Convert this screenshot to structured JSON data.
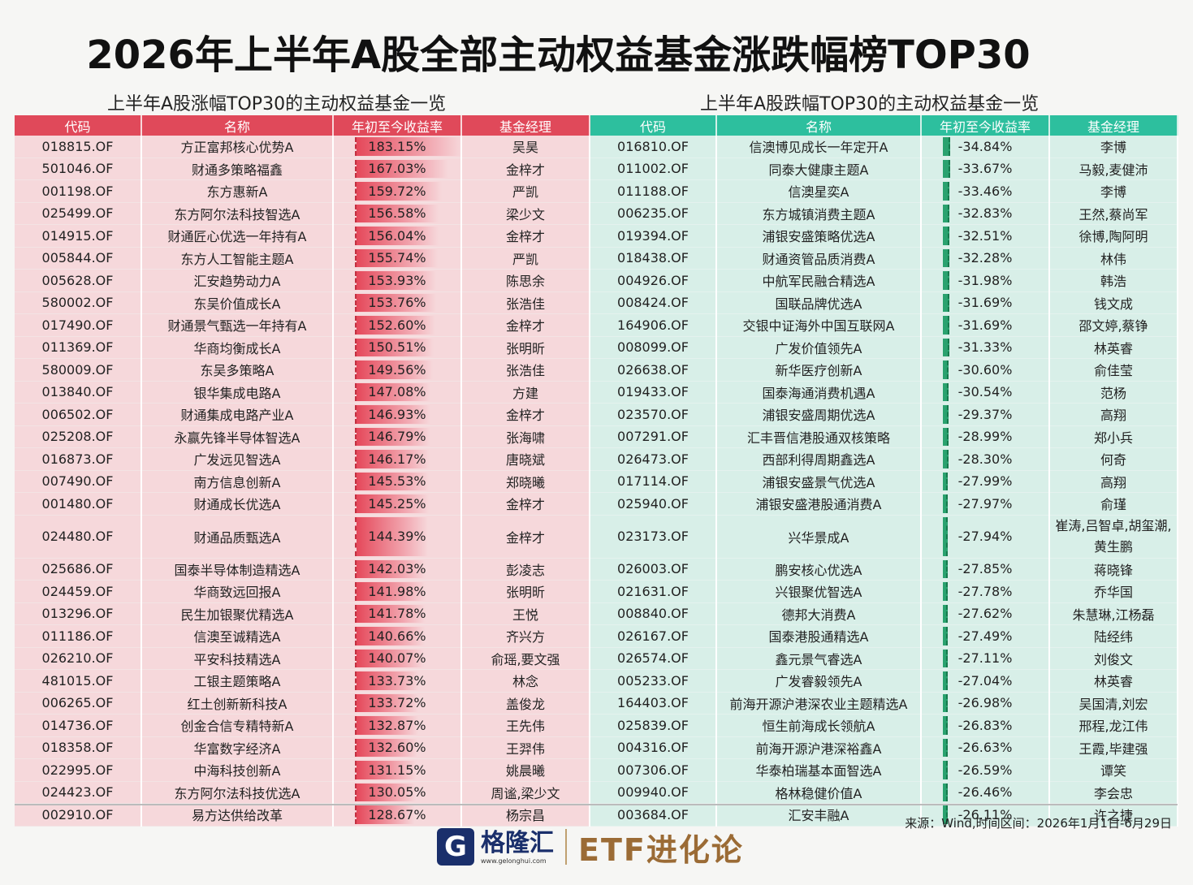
{
  "title": "2026年上半年A股全部主动权益基金涨跌幅榜TOP30",
  "gain_subtitle": "上半年A股涨幅TOP30的主动权益基金一览",
  "loss_subtitle": "上半年A股跌幅TOP30的主动权益基金一览",
  "headers": {
    "code": "代码",
    "name": "名称",
    "ret": "年初至今收益率",
    "mgr": "基金经理"
  },
  "colors": {
    "gain_header": "#e0495a",
    "loss_header": "#2dbf9e",
    "gain_bar": "#e5485a",
    "loss_bar": "#2aa26f"
  },
  "rows": [
    {
      "g": {
        "code": "018815.OF",
        "name": "方正富邦核心优势A",
        "ret": "183.15%",
        "mgr": "吴昊"
      },
      "l": {
        "code": "016810.OF",
        "name": "信澳博见成长一年定开A",
        "ret": "-34.84%",
        "mgr": "李博"
      }
    },
    {
      "g": {
        "code": "501046.OF",
        "name": "财通多策略福鑫",
        "ret": "167.03%",
        "mgr": "金梓才"
      },
      "l": {
        "code": "011002.OF",
        "name": "同泰大健康主题A",
        "ret": "-33.67%",
        "mgr": "马毅,麦健沛"
      }
    },
    {
      "g": {
        "code": "001198.OF",
        "name": "东方惠新A",
        "ret": "159.72%",
        "mgr": "严凯"
      },
      "l": {
        "code": "011188.OF",
        "name": "信澳星奕A",
        "ret": "-33.46%",
        "mgr": "李博"
      }
    },
    {
      "g": {
        "code": "025499.OF",
        "name": "东方阿尔法科技智选A",
        "ret": "156.58%",
        "mgr": "梁少文"
      },
      "l": {
        "code": "006235.OF",
        "name": "东方城镇消费主题A",
        "ret": "-32.83%",
        "mgr": "王然,蔡尚军"
      }
    },
    {
      "g": {
        "code": "014915.OF",
        "name": "财通匠心优选一年持有A",
        "ret": "156.04%",
        "mgr": "金梓才"
      },
      "l": {
        "code": "019394.OF",
        "name": "浦银安盛策略优选A",
        "ret": "-32.51%",
        "mgr": "徐博,陶阿明"
      }
    },
    {
      "g": {
        "code": "005844.OF",
        "name": "东方人工智能主题A",
        "ret": "155.74%",
        "mgr": "严凯"
      },
      "l": {
        "code": "018438.OF",
        "name": "财通资管品质消费A",
        "ret": "-32.28%",
        "mgr": "林伟"
      }
    },
    {
      "g": {
        "code": "005628.OF",
        "name": "汇安趋势动力A",
        "ret": "153.93%",
        "mgr": "陈思余"
      },
      "l": {
        "code": "004926.OF",
        "name": "中航军民融合精选A",
        "ret": "-31.98%",
        "mgr": "韩浩"
      }
    },
    {
      "g": {
        "code": "580002.OF",
        "name": "东吴价值成长A",
        "ret": "153.76%",
        "mgr": "张浩佳"
      },
      "l": {
        "code": "008424.OF",
        "name": "国联品牌优选A",
        "ret": "-31.69%",
        "mgr": "钱文成"
      }
    },
    {
      "g": {
        "code": "017490.OF",
        "name": "财通景气甄选一年持有A",
        "ret": "152.60%",
        "mgr": "金梓才"
      },
      "l": {
        "code": "164906.OF",
        "name": "交银中证海外中国互联网A",
        "ret": "-31.69%",
        "mgr": "邵文婷,蔡铮"
      }
    },
    {
      "g": {
        "code": "011369.OF",
        "name": "华商均衡成长A",
        "ret": "150.51%",
        "mgr": "张明昕"
      },
      "l": {
        "code": "008099.OF",
        "name": "广发价值领先A",
        "ret": "-31.33%",
        "mgr": "林英睿"
      }
    },
    {
      "g": {
        "code": "580009.OF",
        "name": "东吴多策略A",
        "ret": "149.56%",
        "mgr": "张浩佳"
      },
      "l": {
        "code": "026638.OF",
        "name": "新华医疗创新A",
        "ret": "-30.60%",
        "mgr": "俞佳莹"
      }
    },
    {
      "g": {
        "code": "013840.OF",
        "name": "银华集成电路A",
        "ret": "147.08%",
        "mgr": "方建"
      },
      "l": {
        "code": "019433.OF",
        "name": "国泰海通消费机遇A",
        "ret": "-30.54%",
        "mgr": "范杨"
      }
    },
    {
      "g": {
        "code": "006502.OF",
        "name": "财通集成电路产业A",
        "ret": "146.93%",
        "mgr": "金梓才"
      },
      "l": {
        "code": "023570.OF",
        "name": "浦银安盛周期优选A",
        "ret": "-29.37%",
        "mgr": "高翔"
      }
    },
    {
      "g": {
        "code": "025208.OF",
        "name": "永赢先锋半导体智选A",
        "ret": "146.79%",
        "mgr": "张海啸"
      },
      "l": {
        "code": "007291.OF",
        "name": "汇丰晋信港股通双核策略",
        "ret": "-28.99%",
        "mgr": "郑小兵"
      }
    },
    {
      "g": {
        "code": "016873.OF",
        "name": "广发远见智选A",
        "ret": "146.17%",
        "mgr": "唐晓斌"
      },
      "l": {
        "code": "026473.OF",
        "name": "西部利得周期鑫选A",
        "ret": "-28.30%",
        "mgr": "何奇"
      }
    },
    {
      "g": {
        "code": "007490.OF",
        "name": "南方信息创新A",
        "ret": "145.53%",
        "mgr": "郑晓曦"
      },
      "l": {
        "code": "017114.OF",
        "name": "浦银安盛景气优选A",
        "ret": "-27.99%",
        "mgr": "高翔"
      }
    },
    {
      "g": {
        "code": "001480.OF",
        "name": "财通成长优选A",
        "ret": "145.25%",
        "mgr": "金梓才"
      },
      "l": {
        "code": "025940.OF",
        "name": "浦银安盛港股通消费A",
        "ret": "-27.97%",
        "mgr": "俞瑾"
      }
    },
    {
      "g": {
        "code": "024480.OF",
        "name": "财通品质甄选A",
        "ret": "144.39%",
        "mgr": "金梓才"
      },
      "l": {
        "code": "023173.OF",
        "name": "兴华景成A",
        "ret": "-27.94%",
        "mgr": "崔涛,吕智卓,胡玺潮,黄生鹏"
      }
    },
    {
      "g": {
        "code": "025686.OF",
        "name": "国泰半导体制造精选A",
        "ret": "142.03%",
        "mgr": "彭凌志"
      },
      "l": {
        "code": "026003.OF",
        "name": "鹏安核心优选A",
        "ret": "-27.85%",
        "mgr": "蒋晓锋"
      }
    },
    {
      "g": {
        "code": "024459.OF",
        "name": "华商致远回报A",
        "ret": "141.98%",
        "mgr": "张明昕"
      },
      "l": {
        "code": "021631.OF",
        "name": "兴银聚优智选A",
        "ret": "-27.78%",
        "mgr": "乔华国"
      }
    },
    {
      "g": {
        "code": "013296.OF",
        "name": "民生加银聚优精选A",
        "ret": "141.78%",
        "mgr": "王悦"
      },
      "l": {
        "code": "008840.OF",
        "name": "德邦大消费A",
        "ret": "-27.62%",
        "mgr": "朱慧琳,江杨磊"
      }
    },
    {
      "g": {
        "code": "011186.OF",
        "name": "信澳至诚精选A",
        "ret": "140.66%",
        "mgr": "齐兴方"
      },
      "l": {
        "code": "026167.OF",
        "name": "国泰港股通精选A",
        "ret": "-27.49%",
        "mgr": "陆经纬"
      }
    },
    {
      "g": {
        "code": "026210.OF",
        "name": "平安科技精选A",
        "ret": "140.07%",
        "mgr": "俞瑶,要文强"
      },
      "l": {
        "code": "026574.OF",
        "name": "鑫元景气睿选A",
        "ret": "-27.11%",
        "mgr": "刘俊文"
      }
    },
    {
      "g": {
        "code": "481015.OF",
        "name": "工银主题策略A",
        "ret": "133.73%",
        "mgr": "林念"
      },
      "l": {
        "code": "005233.OF",
        "name": "广发睿毅领先A",
        "ret": "-27.04%",
        "mgr": "林英睿"
      }
    },
    {
      "g": {
        "code": "006265.OF",
        "name": "红土创新新科技A",
        "ret": "133.72%",
        "mgr": "盖俊龙"
      },
      "l": {
        "code": "164403.OF",
        "name": "前海开源沪港深农业主题精选A",
        "ret": "-26.98%",
        "mgr": "吴国清,刘宏"
      }
    },
    {
      "g": {
        "code": "014736.OF",
        "name": "创金合信专精特新A",
        "ret": "132.87%",
        "mgr": "王先伟"
      },
      "l": {
        "code": "025839.OF",
        "name": "恒生前海成长领航A",
        "ret": "-26.83%",
        "mgr": "邢程,龙江伟"
      }
    },
    {
      "g": {
        "code": "018358.OF",
        "name": "华富数字经济A",
        "ret": "132.60%",
        "mgr": "王羿伟"
      },
      "l": {
        "code": "004316.OF",
        "name": "前海开源沪港深裕鑫A",
        "ret": "-26.63%",
        "mgr": "王霞,毕建强"
      }
    },
    {
      "g": {
        "code": "022995.OF",
        "name": "中海科技创新A",
        "ret": "131.15%",
        "mgr": "姚晨曦"
      },
      "l": {
        "code": "007306.OF",
        "name": "华泰柏瑞基本面智选A",
        "ret": "-26.59%",
        "mgr": "谭笑"
      }
    },
    {
      "g": {
        "code": "024423.OF",
        "name": "东方阿尔法科技优选A",
        "ret": "130.05%",
        "mgr": "周谧,梁少文"
      },
      "l": {
        "code": "009940.OF",
        "name": "格林稳健价值A",
        "ret": "-26.46%",
        "mgr": "李会忠"
      }
    },
    {
      "g": {
        "code": "002910.OF",
        "name": "易方达供给改革",
        "ret": "128.67%",
        "mgr": "杨宗昌"
      },
      "l": {
        "code": "003684.OF",
        "name": "汇安丰融A",
        "ret": "-26.11%",
        "mgr": "许之捷"
      }
    }
  ],
  "source": "来源：Wind,时间区间：2026年1月1日-6月29日",
  "brand": {
    "logo_letter": "G",
    "name": "格隆汇",
    "url": "www.gelonghui.com",
    "etf": "ETF进化论"
  }
}
